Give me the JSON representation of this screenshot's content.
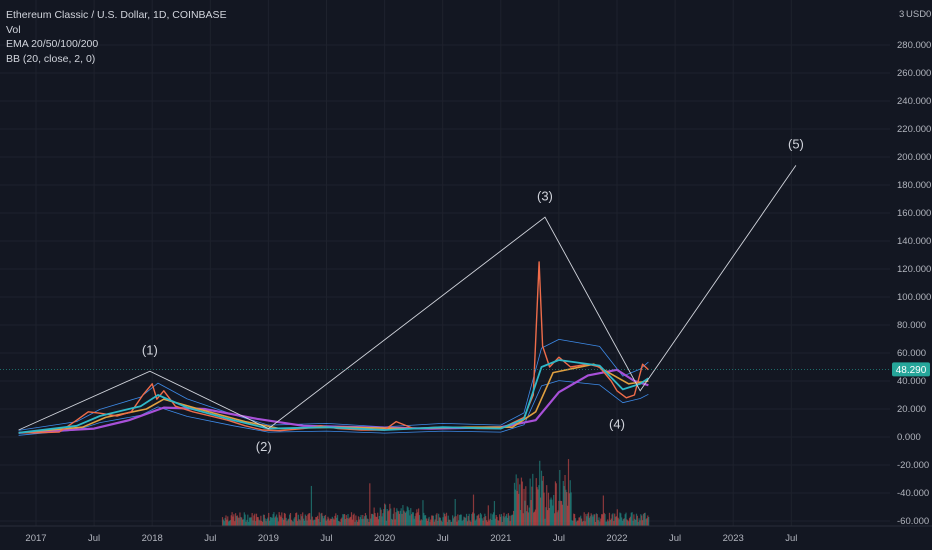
{
  "legend": {
    "title": "Ethereum Classic / U.S. Dollar, 1D, COINBASE",
    "vol": "Vol",
    "ema": "EMA 20/50/100/200",
    "bb": "BB (20, close, 2, 0)"
  },
  "axis_unit": "USD",
  "corner_label": "3",
  "corner_label_zero": "0",
  "chart_data": {
    "type": "line",
    "symbol": "Ethereum Classic / U.S. Dollar",
    "interval": "1D",
    "exchange": "COINBASE",
    "y_ticks": [
      "280.000",
      "260.000",
      "240.000",
      "220.000",
      "200.000",
      "180.000",
      "160.000",
      "140.000",
      "120.000",
      "100.000",
      "80.000",
      "60.000",
      "40.000",
      "20.000",
      "0.000",
      "-20.000",
      "-40.000",
      "-60.000"
    ],
    "y_range": [
      -60,
      300
    ],
    "x_ticks": [
      {
        "label": "2017",
        "t": 2017.0
      },
      {
        "label": "Jul",
        "t": 2017.5
      },
      {
        "label": "2018",
        "t": 2018.0
      },
      {
        "label": "Jul",
        "t": 2018.5
      },
      {
        "label": "2019",
        "t": 2019.0
      },
      {
        "label": "Jul",
        "t": 2019.5
      },
      {
        "label": "2020",
        "t": 2020.0
      },
      {
        "label": "Jul",
        "t": 2020.5
      },
      {
        "label": "2021",
        "t": 2021.0
      },
      {
        "label": "Jul",
        "t": 2021.5
      },
      {
        "label": "2022",
        "t": 2022.0
      },
      {
        "label": "Jul",
        "t": 2022.5
      },
      {
        "label": "2023",
        "t": 2023.0
      },
      {
        "label": "Jul",
        "t": 2023.5
      }
    ],
    "current_price": "48.290",
    "current_value": 48.29,
    "colors": {
      "price": "#ef6c4a",
      "ema_fast": "#2fb8c8",
      "ema_mid": "#e0a040",
      "ema_slow": "#a850d8",
      "bb": "#3d8ae8",
      "wave": "#d1d4dc",
      "price_tag": "#26a69a",
      "volume_up": "#26a69a",
      "volume_down": "#ef5350",
      "grid": "#1e222d",
      "background": "#131722"
    },
    "price_series": [
      [
        2016.85,
        3
      ],
      [
        2017.0,
        3
      ],
      [
        2017.2,
        3.5
      ],
      [
        2017.35,
        12
      ],
      [
        2017.45,
        18
      ],
      [
        2017.55,
        17
      ],
      [
        2017.7,
        15
      ],
      [
        2017.82,
        18
      ],
      [
        2017.92,
        30
      ],
      [
        2018.0,
        38
      ],
      [
        2018.04,
        27
      ],
      [
        2018.1,
        33
      ],
      [
        2018.2,
        22
      ],
      [
        2018.35,
        18
      ],
      [
        2018.5,
        15
      ],
      [
        2018.65,
        12
      ],
      [
        2018.8,
        8
      ],
      [
        2018.95,
        5
      ],
      [
        2019.1,
        4.5
      ],
      [
        2019.3,
        6
      ],
      [
        2019.45,
        8
      ],
      [
        2019.6,
        6
      ],
      [
        2019.8,
        5
      ],
      [
        2020.0,
        5
      ],
      [
        2020.1,
        11
      ],
      [
        2020.25,
        6
      ],
      [
        2020.45,
        7
      ],
      [
        2020.6,
        7
      ],
      [
        2020.8,
        6
      ],
      [
        2021.0,
        6
      ],
      [
        2021.1,
        10
      ],
      [
        2021.2,
        14
      ],
      [
        2021.28,
        30
      ],
      [
        2021.33,
        125
      ],
      [
        2021.36,
        65
      ],
      [
        2021.42,
        50
      ],
      [
        2021.5,
        57
      ],
      [
        2021.6,
        50
      ],
      [
        2021.75,
        52
      ],
      [
        2021.85,
        50
      ],
      [
        2021.95,
        40
      ],
      [
        2022.0,
        33
      ],
      [
        2022.08,
        28
      ],
      [
        2022.15,
        30
      ],
      [
        2022.22,
        52
      ],
      [
        2022.27,
        48
      ]
    ],
    "ema_fast": [
      [
        2016.85,
        3
      ],
      [
        2017.35,
        8
      ],
      [
        2017.55,
        15
      ],
      [
        2017.9,
        22
      ],
      [
        2018.05,
        30
      ],
      [
        2018.3,
        21
      ],
      [
        2018.7,
        12
      ],
      [
        2019.0,
        6
      ],
      [
        2019.5,
        7
      ],
      [
        2020.0,
        5
      ],
      [
        2020.5,
        7
      ],
      [
        2021.0,
        6
      ],
      [
        2021.2,
        13
      ],
      [
        2021.35,
        50
      ],
      [
        2021.5,
        55
      ],
      [
        2021.85,
        51
      ],
      [
        2022.05,
        34
      ],
      [
        2022.2,
        38
      ],
      [
        2022.27,
        42
      ]
    ],
    "ema_mid": [
      [
        2016.85,
        3
      ],
      [
        2017.4,
        7
      ],
      [
        2017.6,
        14
      ],
      [
        2017.95,
        20
      ],
      [
        2018.1,
        27
      ],
      [
        2018.4,
        20
      ],
      [
        2018.8,
        11
      ],
      [
        2019.1,
        6
      ],
      [
        2019.6,
        7
      ],
      [
        2020.2,
        6
      ],
      [
        2020.7,
        7
      ],
      [
        2021.1,
        7
      ],
      [
        2021.3,
        18
      ],
      [
        2021.45,
        46
      ],
      [
        2021.8,
        52
      ],
      [
        2022.1,
        38
      ],
      [
        2022.27,
        40
      ]
    ],
    "ema_slow": [
      [
        2016.85,
        3
      ],
      [
        2017.5,
        6
      ],
      [
        2017.8,
        12
      ],
      [
        2018.1,
        21
      ],
      [
        2018.45,
        20
      ],
      [
        2018.9,
        13
      ],
      [
        2019.3,
        8
      ],
      [
        2019.8,
        7
      ],
      [
        2020.4,
        6
      ],
      [
        2021.0,
        7
      ],
      [
        2021.3,
        12
      ],
      [
        2021.5,
        32
      ],
      [
        2021.75,
        44
      ],
      [
        2022.0,
        48
      ],
      [
        2022.15,
        40
      ],
      [
        2022.27,
        37
      ]
    ],
    "wave_count": [
      {
        "label": "(1)",
        "t": 2017.98,
        "v": 47,
        "text_t": 2017.98,
        "text_v": 59
      },
      {
        "label": "(2)",
        "t": 2019.0,
        "v": 6,
        "text_t": 2018.96,
        "text_v": -10
      },
      {
        "label": "(3)",
        "t": 2021.38,
        "v": 157,
        "text_t": 2021.38,
        "text_v": 169
      },
      {
        "label": "(4)",
        "t": 2022.2,
        "v": 33,
        "text_t": 2022.0,
        "text_v": 6
      },
      {
        "label": "(5)",
        "t": 2023.54,
        "v": 194,
        "text_t": 2023.54,
        "text_v": 206
      }
    ],
    "wave_start": {
      "t": 2016.85,
      "v": 5
    }
  }
}
